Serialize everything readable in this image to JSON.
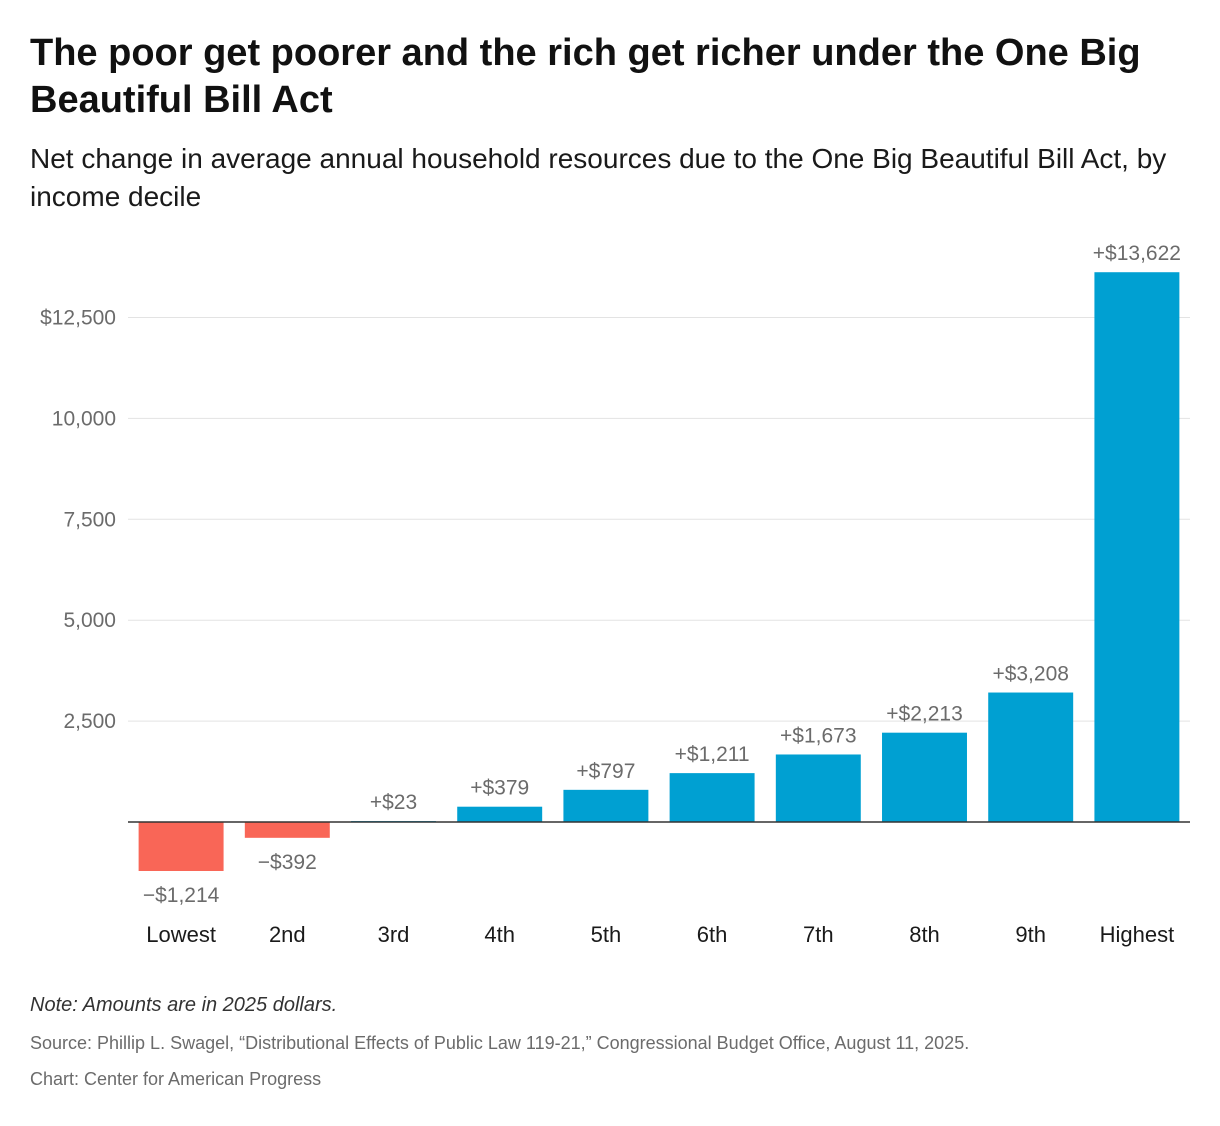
{
  "title": "The poor get poorer and the rich get richer under the One Big Beautiful Bill Act",
  "subtitle": "Net change in average annual household resources due to the One Big Beautiful Bill Act, by income decile",
  "note": "Note: Amounts are in 2025 dollars.",
  "source": "Source: Phillip L. Swagel, “Distributional Effects of Public Law 119-21,” Congressional Budget Office, August 11, 2025.",
  "credit": "Chart: Center for American Progress",
  "colors": {
    "positive": "#00a0d2",
    "negative": "#f96657",
    "grid": "#e3e3e3",
    "axis": "#333333"
  },
  "chart_data": {
    "type": "bar",
    "categories": [
      "Lowest",
      "2nd",
      "3rd",
      "4th",
      "5th",
      "6th",
      "7th",
      "8th",
      "9th",
      "Highest"
    ],
    "values": [
      -1214,
      -392,
      23,
      379,
      797,
      1211,
      1673,
      2213,
      3208,
      13622
    ],
    "data_labels": [
      "−$1,214",
      "−$392",
      "+$23",
      "+$379",
      "+$797",
      "+$1,211",
      "+$1,673",
      "+$2,213",
      "+$3,208",
      "+$13,622"
    ],
    "yticks": [
      2500,
      5000,
      7500,
      10000,
      12500
    ],
    "ytick_labels": [
      "2,500",
      "5,000",
      "7,500",
      "10,000",
      "$12,500"
    ],
    "ylim": [
      -1214,
      13622
    ],
    "xlabel": "",
    "ylabel": "",
    "grid": true,
    "legend": "none"
  }
}
